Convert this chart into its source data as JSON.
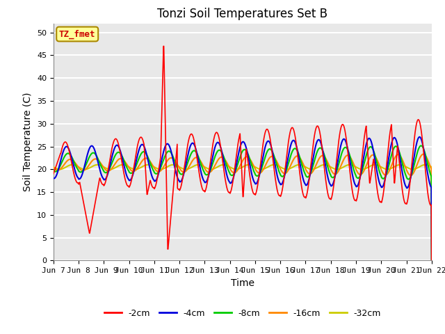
{
  "title": "Tonzi Soil Temperatures Set B",
  "xlabel": "Time",
  "ylabel": "Soil Temperature (C)",
  "ylim": [
    0,
    52
  ],
  "yticks": [
    0,
    5,
    10,
    15,
    20,
    25,
    30,
    35,
    40,
    45,
    50
  ],
  "annotation_text": "TZ_fmet",
  "annotation_color": "#cc0000",
  "annotation_bg": "#ffff99",
  "annotation_border": "#aa8800",
  "plot_bg_color": "#e8e8e8",
  "fig_bg_color": "#ffffff",
  "grid_color": "#ffffff",
  "series_colors": [
    "#ff0000",
    "#0000dd",
    "#00cc00",
    "#ff8800",
    "#cccc00"
  ],
  "series_labels": [
    "-2cm",
    "-4cm",
    "-8cm",
    "-16cm",
    "-32cm"
  ],
  "x_tick_labels": [
    "Jun 7",
    "Jun 8",
    " Jun 9",
    "Jun 10",
    "Jun 11",
    "Jun 12",
    "Jun 13",
    "Jun 14",
    "Jun 15",
    "Jun 16",
    "Jun 17",
    "Jun 18",
    "Jun 19",
    "Jun 20",
    "Jun 21",
    "Jun 22"
  ],
  "x_tick_positions": [
    0,
    1,
    2,
    3,
    4,
    5,
    6,
    7,
    8,
    9,
    10,
    11,
    12,
    13,
    14,
    15
  ]
}
